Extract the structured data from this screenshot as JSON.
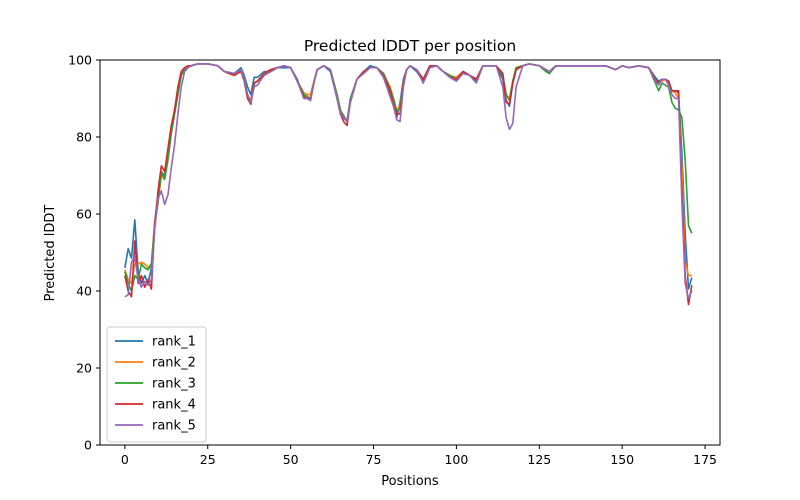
{
  "chart_data": {
    "type": "line",
    "title": "Predicted lDDT per position",
    "xlabel": "Positions",
    "ylabel": "Predicted lDDT",
    "xlim": [
      -7.5,
      179.5
    ],
    "ylim": [
      0,
      100
    ],
    "xticks": [
      0,
      25,
      50,
      75,
      100,
      125,
      150,
      175
    ],
    "yticks": [
      0,
      20,
      40,
      60,
      80,
      100
    ],
    "grid": false,
    "legend_position": "lower-left",
    "anchors_x": [
      0,
      1,
      2,
      3,
      4,
      5,
      6,
      7,
      8,
      9,
      10,
      11,
      12,
      13,
      14,
      15,
      16,
      17,
      18,
      19,
      20,
      22,
      25,
      28,
      30,
      33,
      35,
      36,
      37,
      38,
      39,
      40,
      42,
      44,
      46,
      48,
      50,
      52,
      54,
      55,
      56,
      57,
      58,
      60,
      62,
      64,
      65,
      66,
      67,
      68,
      70,
      72,
      74,
      76,
      78,
      80,
      81,
      82,
      83,
      84,
      85,
      86,
      88,
      90,
      92,
      94,
      96,
      98,
      100,
      102,
      104,
      106,
      108,
      110,
      112,
      114,
      115,
      116,
      117,
      118,
      120,
      122,
      125,
      127,
      128,
      130,
      132,
      135,
      138,
      140,
      142,
      145,
      148,
      150,
      152,
      155,
      158,
      160,
      161,
      162,
      163,
      164,
      165,
      166,
      167,
      168,
      169,
      170,
      171
    ],
    "series": [
      {
        "name": "rank_1",
        "color": "#1f77b4",
        "values": [
          46,
          51,
          48.5,
          58.5,
          45,
          42,
          44,
          42,
          46,
          58,
          65,
          71,
          70,
          75,
          82,
          87,
          92,
          96,
          97.5,
          98,
          98.5,
          99,
          99,
          98.5,
          97,
          96.5,
          98,
          96,
          93,
          91,
          95.5,
          95.5,
          97,
          97,
          98,
          98,
          98,
          95,
          90,
          90,
          89.5,
          94,
          97.5,
          98.5,
          97,
          90,
          87,
          85.5,
          84,
          90,
          95,
          97,
          98.5,
          98,
          96,
          91,
          89,
          85,
          89,
          95,
          97.5,
          98.5,
          97,
          94.5,
          98,
          98.5,
          97,
          96,
          95,
          97,
          96,
          94.5,
          98.5,
          98.5,
          98.5,
          95,
          89.5,
          88,
          94,
          97.5,
          98.5,
          99,
          98.5,
          97.5,
          96.5,
          98.5,
          98.5,
          98.5,
          98.5,
          98.5,
          98.5,
          98.5,
          97.5,
          98.5,
          98,
          98.5,
          98,
          95.5,
          94.5,
          95,
          95,
          94.5,
          92,
          92,
          91.5,
          76,
          55,
          40.5,
          43.5
        ]
      },
      {
        "name": "rank_2",
        "color": "#ff7f0e",
        "values": [
          45.5,
          43,
          42,
          47,
          47,
          47.5,
          47,
          46,
          47,
          58,
          63,
          70,
          69,
          75,
          81,
          86,
          91,
          96,
          97.5,
          98,
          98.5,
          99,
          99,
          98.5,
          97,
          96,
          97.5,
          95,
          91,
          89.5,
          94,
          94.5,
          96.5,
          97.5,
          98,
          98.5,
          98,
          94.5,
          91.5,
          91,
          91,
          94.5,
          97.5,
          98.5,
          97.5,
          91,
          87,
          85,
          84,
          89.5,
          95,
          97,
          98,
          98,
          96.5,
          93,
          90,
          87,
          88,
          94.5,
          97.5,
          98.5,
          97.5,
          95,
          98.5,
          98.5,
          97,
          96,
          95.5,
          97,
          96,
          95,
          98.5,
          98.5,
          98.5,
          96,
          91,
          90,
          94.5,
          98,
          98.5,
          99,
          98.5,
          97.5,
          97,
          98.5,
          98.5,
          98.5,
          98.5,
          98.5,
          98.5,
          98.5,
          97.5,
          98.5,
          98,
          98.5,
          98,
          95,
          94,
          94.5,
          95,
          94,
          92,
          91.5,
          90,
          72,
          48,
          44,
          44
        ]
      },
      {
        "name": "rank_3",
        "color": "#2ca02c",
        "values": [
          45,
          42,
          40,
          44,
          43,
          47,
          46,
          45.5,
          47,
          57,
          63,
          71,
          69,
          74,
          81,
          86,
          91,
          96,
          97.5,
          98,
          98.5,
          99,
          99,
          98.5,
          97,
          96,
          97.5,
          95,
          91,
          89,
          94,
          94.5,
          96,
          97,
          98,
          98.5,
          98,
          94.5,
          91,
          90.5,
          90,
          94,
          97.5,
          98.5,
          97.5,
          91,
          87,
          85,
          84,
          89.5,
          95,
          97,
          98,
          98,
          96.5,
          92.5,
          90,
          86.5,
          87.5,
          94.5,
          97.5,
          98.5,
          97.5,
          95,
          98.5,
          98.5,
          97,
          96,
          95,
          97,
          96,
          95,
          98.5,
          98.5,
          98.5,
          96,
          91,
          89.5,
          94.5,
          98,
          98.5,
          99,
          98.5,
          97,
          96.5,
          98.5,
          98.5,
          98.5,
          98.5,
          98.5,
          98.5,
          98.5,
          97.5,
          98.5,
          98,
          98.5,
          98,
          94,
          92,
          94,
          93.5,
          93,
          89,
          87.5,
          87,
          85,
          74,
          57,
          55
        ]
      },
      {
        "name": "rank_4",
        "color": "#d62728",
        "values": [
          44,
          40,
          38.5,
          53,
          42,
          44,
          41,
          43,
          40.5,
          57,
          66,
          72.5,
          71,
          77,
          83,
          87,
          93,
          97,
          98,
          98.5,
          98.5,
          99,
          99,
          98.5,
          97,
          96,
          97,
          94.5,
          90,
          88.5,
          94,
          94.5,
          96.5,
          97.5,
          98,
          98.5,
          98,
          94.5,
          90.5,
          90,
          90,
          94,
          97.5,
          98.5,
          97.5,
          90,
          86,
          84,
          83,
          89,
          95,
          97,
          98,
          98,
          96,
          92,
          88.5,
          86,
          86,
          94,
          97.5,
          98.5,
          97.5,
          95,
          98.5,
          98.5,
          97,
          95.5,
          95,
          97,
          96,
          95,
          98.5,
          98.5,
          98.5,
          96.5,
          89,
          88.5,
          94,
          97.5,
          98.5,
          99,
          98.5,
          97.5,
          97,
          98.5,
          98.5,
          98.5,
          98.5,
          98.5,
          98.5,
          98.5,
          97.5,
          98.5,
          98,
          98.5,
          98,
          95,
          94,
          95,
          95,
          94.5,
          92,
          92,
          92,
          66,
          44,
          36.5,
          41.5
        ]
      },
      {
        "name": "rank_5",
        "color": "#9467bd",
        "values": [
          38.5,
          39,
          47.5,
          49,
          43,
          41,
          42.5,
          41.5,
          43,
          56,
          64,
          66,
          62.5,
          65,
          72,
          78,
          86,
          93,
          97,
          98,
          98.5,
          99,
          99,
          98.5,
          97,
          96.5,
          97.5,
          95,
          91,
          89,
          93,
          93.5,
          96,
          97,
          98,
          98.5,
          98,
          94.5,
          90,
          90,
          89.5,
          94,
          97.5,
          98.5,
          97.5,
          90,
          86,
          85,
          84,
          89,
          95,
          96.5,
          98,
          98,
          95.5,
          90.5,
          88,
          84.5,
          84,
          93,
          97.5,
          98.5,
          97.5,
          94,
          98,
          98.5,
          97,
          95.5,
          94.5,
          96.5,
          96,
          94,
          98.5,
          98.5,
          98.5,
          93,
          85,
          82,
          83.5,
          93,
          98.5,
          99,
          98.5,
          97.5,
          97,
          98.5,
          98.5,
          98.5,
          98.5,
          98.5,
          98.5,
          98.5,
          97.5,
          98.5,
          98,
          98.5,
          98,
          94.5,
          93.5,
          95,
          95,
          93.5,
          91,
          90,
          90,
          63,
          42,
          38,
          40
        ]
      }
    ]
  }
}
